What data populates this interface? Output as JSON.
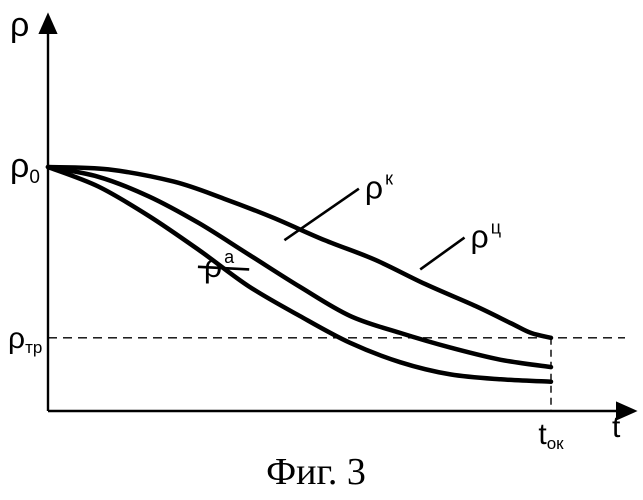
{
  "chart_data": {
    "type": "line",
    "title": "",
    "caption": "Фиг. 3",
    "xlabel": "t",
    "ylabel": "ρ",
    "xlim": [
      0,
      1.2
    ],
    "ylim": [
      0,
      1.0
    ],
    "grid": false,
    "legend": "none",
    "ref_lines": [
      {
        "axis": "y",
        "value": 0.3,
        "label": "ρ",
        "sub": "тр",
        "style": "dashed"
      },
      {
        "axis": "x",
        "value": 1.0,
        "label": "t",
        "sub": "ок",
        "style": "dashed"
      }
    ],
    "y_tick_labels": [
      {
        "value": 1.0,
        "label": "ρ",
        "sub": "0"
      }
    ],
    "series": [
      {
        "label": "ρ",
        "sup": "ц",
        "label_at": [
          0.84,
          0.67
        ],
        "leader_from": [
          0.74,
          0.58
        ],
        "x": [
          0.0,
          0.12,
          0.25,
          0.35,
          0.45,
          0.55,
          0.65,
          0.75,
          0.85,
          0.92,
          0.96,
          1.0
        ],
        "y": [
          1.0,
          0.99,
          0.94,
          0.87,
          0.79,
          0.7,
          0.62,
          0.52,
          0.43,
          0.36,
          0.32,
          0.3
        ]
      },
      {
        "label": "ρ",
        "sup": "к",
        "label_at": [
          0.63,
          0.87
        ],
        "leader_from": [
          0.47,
          0.7
        ],
        "x": [
          0.0,
          0.1,
          0.2,
          0.3,
          0.4,
          0.5,
          0.6,
          0.7,
          0.8,
          0.9,
          1.0
        ],
        "y": [
          1.0,
          0.96,
          0.88,
          0.77,
          0.64,
          0.51,
          0.39,
          0.32,
          0.26,
          0.21,
          0.18
        ]
      },
      {
        "label": "ρ",
        "sup": "а",
        "label_at": [
          0.31,
          0.55
        ],
        "leader_from": [
          0.4,
          0.58
        ],
        "x": [
          0.0,
          0.1,
          0.2,
          0.3,
          0.4,
          0.5,
          0.6,
          0.7,
          0.8,
          0.9,
          1.0
        ],
        "y": [
          1.0,
          0.92,
          0.8,
          0.66,
          0.51,
          0.39,
          0.28,
          0.2,
          0.15,
          0.13,
          0.12
        ]
      }
    ]
  }
}
